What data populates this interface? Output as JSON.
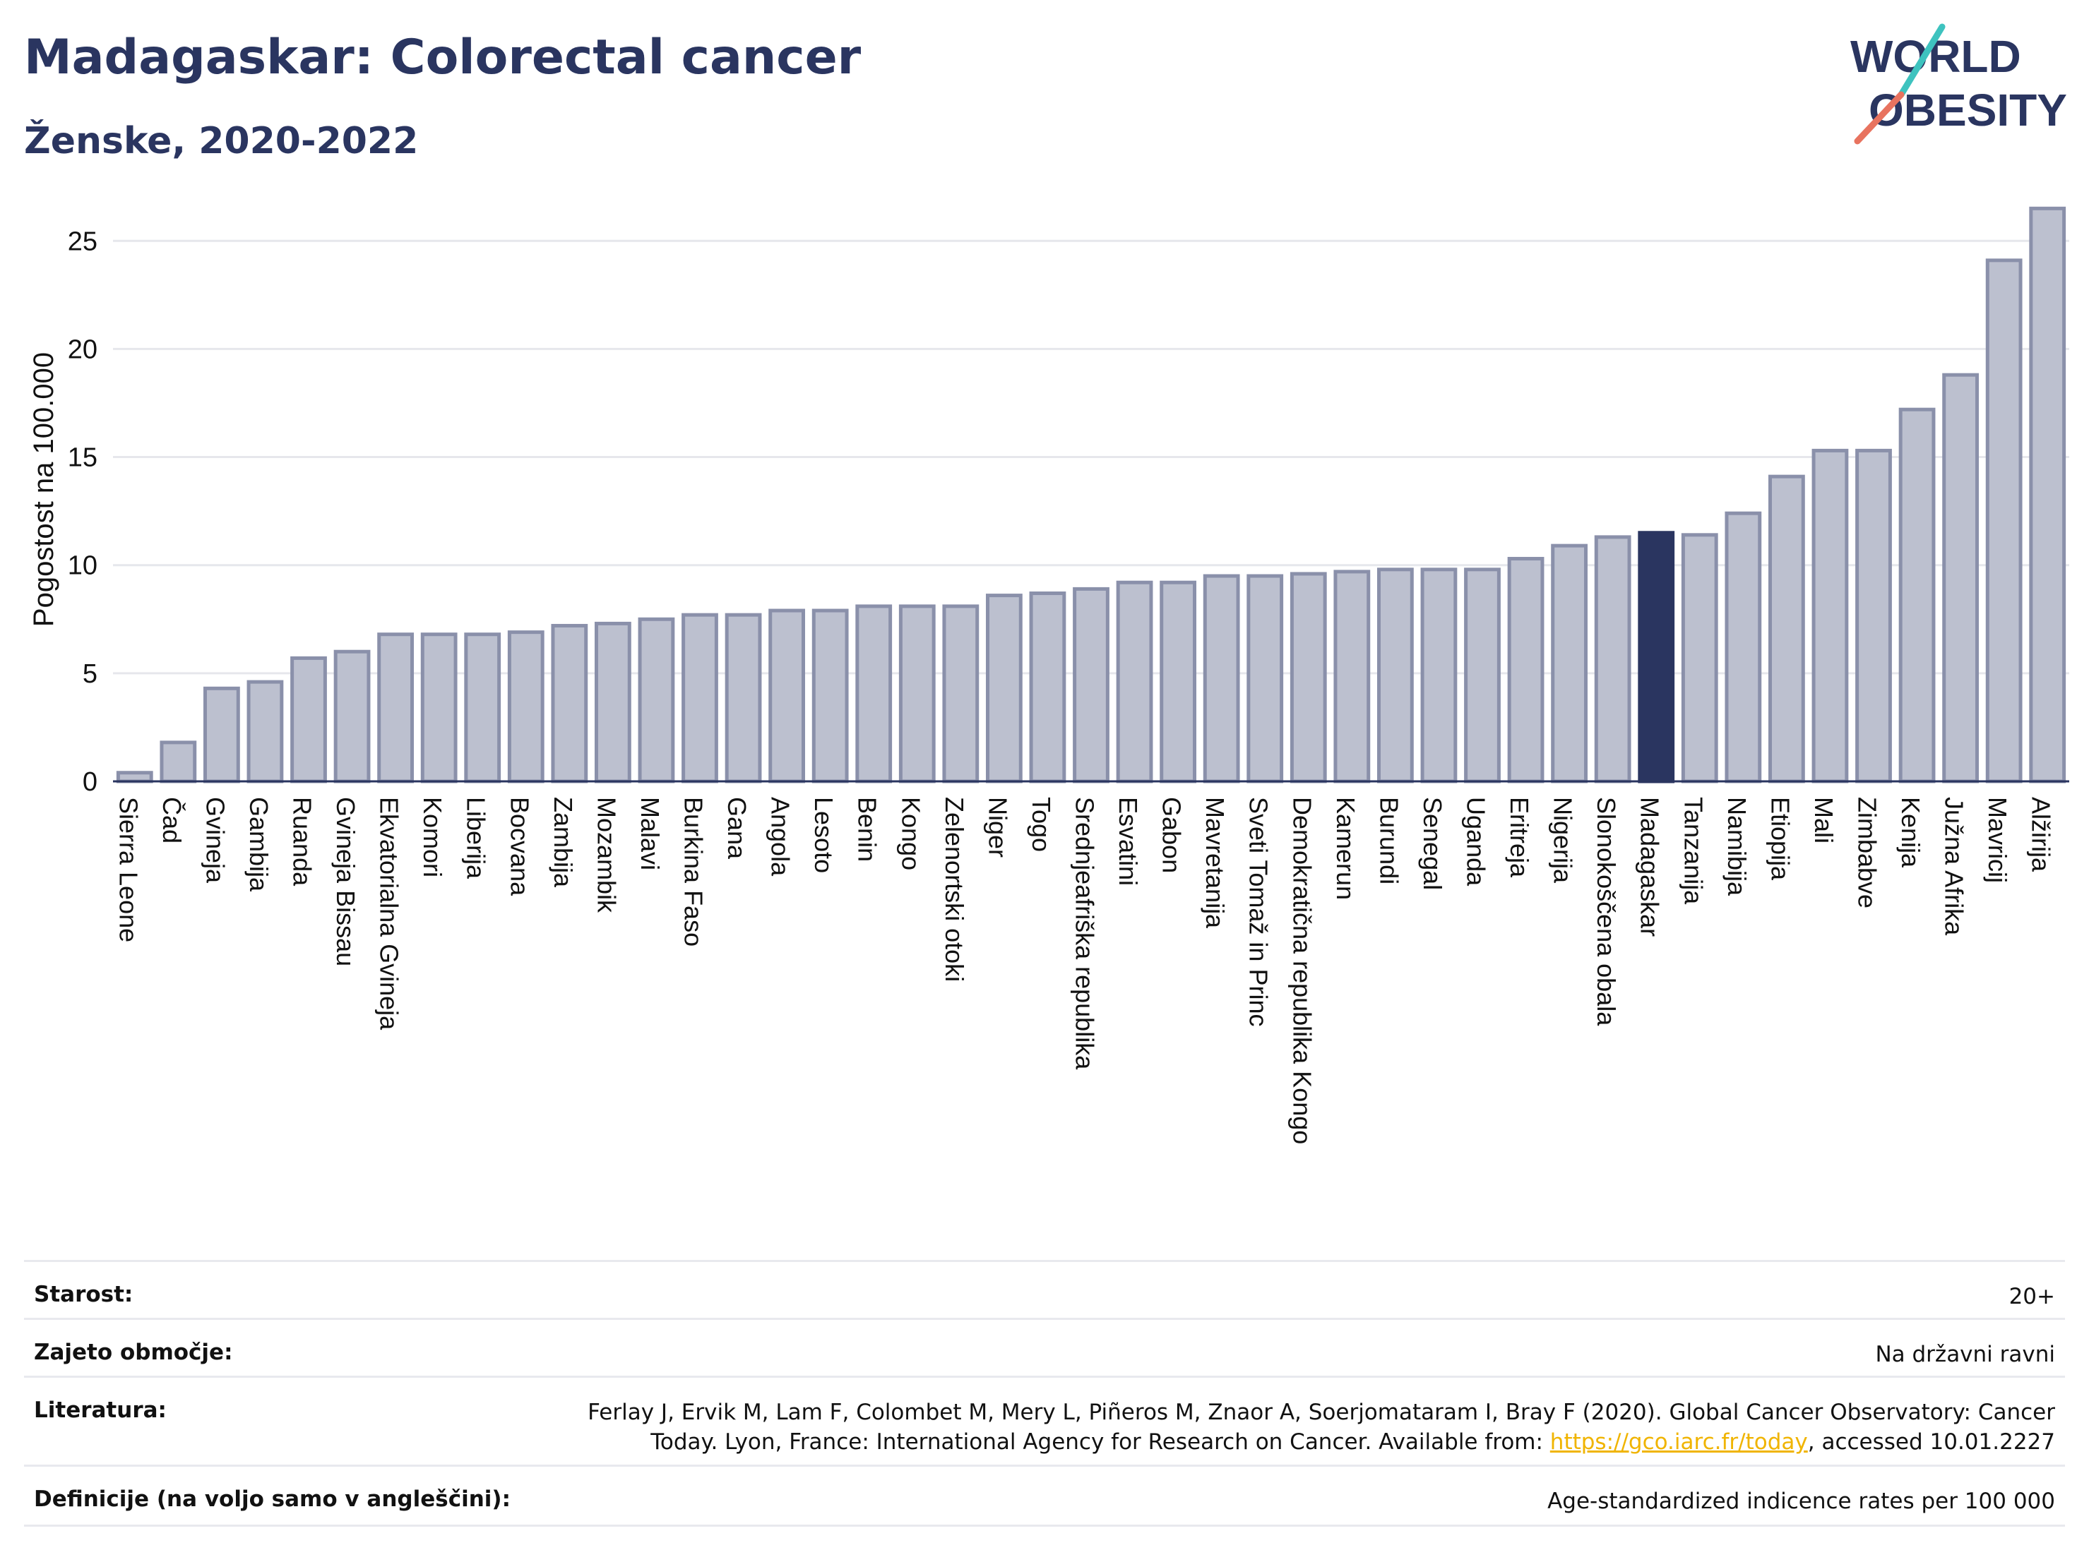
{
  "header": {
    "title": "Madagaskar: Colorectal cancer",
    "subtitle": "Ženske, 2020-2022",
    "logo_line1": "WORLD",
    "logo_line2": "OBESITY"
  },
  "colors": {
    "bar": "#bcc0cf",
    "bar_stroke": "#8a90aa",
    "highlight": "#2a3560",
    "text": "#2a3560",
    "logo_teal": "#3ec3bf",
    "logo_coral": "#e8735f"
  },
  "chart_data": {
    "type": "bar",
    "ylabel": "Pogostost na 100.000",
    "ylim": [
      0,
      27
    ],
    "yticks": [
      0,
      5,
      10,
      15,
      20,
      25
    ],
    "grid": true,
    "highlight": "Madagaskar",
    "categories": [
      "Sierra Leone",
      "Čad",
      "Gvineja",
      "Gambija",
      "Ruanda",
      "Gvineja Bissau",
      "Ekvatorialna Gvineja",
      "Komori",
      "Liberija",
      "Bocvana",
      "Zambija",
      "Mozambik",
      "Malavi",
      "Burkina Faso",
      "Gana",
      "Angola",
      "Lesoto",
      "Benin",
      "Kongo",
      "Zelenortski otoki",
      "Niger",
      "Togo",
      "Srednjeafriška republika",
      "Esvatini",
      "Gabon",
      "Mavretanija",
      "Sveti Tomaž in Princ",
      "Demokratična republika Kongo",
      "Kamerun",
      "Burundi",
      "Senegal",
      "Uganda",
      "Eritreja",
      "Nigerija",
      "Slonokoščena obala",
      "Madagaskar",
      "Tanzanija",
      "Namibija",
      "Etiopija",
      "Mali",
      "Zimbabve",
      "Kenija",
      "Južna Afrika",
      "Mavricij",
      "Alžirija"
    ],
    "values": [
      0.4,
      1.8,
      4.3,
      4.6,
      5.7,
      6.0,
      6.8,
      6.8,
      6.8,
      6.9,
      7.2,
      7.3,
      7.5,
      7.7,
      7.7,
      7.9,
      7.9,
      8.1,
      8.1,
      8.1,
      8.6,
      8.7,
      8.9,
      9.2,
      9.2,
      9.5,
      9.5,
      9.6,
      9.7,
      9.8,
      9.8,
      9.8,
      10.3,
      10.9,
      11.3,
      11.5,
      11.4,
      12.4,
      14.1,
      15.3,
      15.3,
      17.2,
      18.8,
      24.1,
      26.5
    ]
  },
  "meta": {
    "age_label": "Starost:",
    "age_value": "20+",
    "area_label": "Zajeto območje:",
    "area_value": "Na državni ravni",
    "ref_label": "Literatura:",
    "ref_line1": "Ferlay J, Ervik M, Lam F, Colombet M, Mery L, Piñeros M, Znaor A, Soerjomataram I, Bray F (2020). Global Cancer Observatory: Cancer",
    "ref_line2_pre": "Today. Lyon, France: International Agency for Research on Cancer. Available from: ",
    "ref_link": "https://gco.iarc.fr/today",
    "ref_line2_post": ", accessed 10.01.2227",
    "def_label": "Definicije (na voljo samo v angleščini):",
    "def_value": "Age-standardized indicence rates per 100 000"
  }
}
